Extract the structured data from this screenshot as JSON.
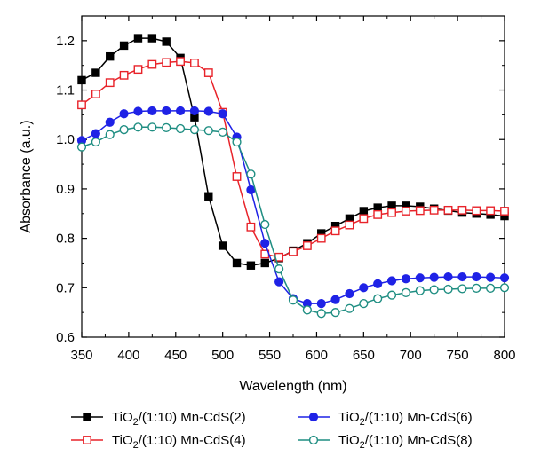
{
  "chart_data": {
    "type": "line",
    "title": "",
    "xlabel": "Wavelength (nm)",
    "ylabel": "Absorbance (a.u.)",
    "xlim": [
      350,
      800
    ],
    "ylim": [
      0.6,
      1.25
    ],
    "xticks": [
      350,
      400,
      450,
      500,
      550,
      600,
      650,
      700,
      750,
      800
    ],
    "yticks": [
      0.6,
      0.7,
      0.8,
      0.9,
      1.0,
      1.1,
      1.2
    ],
    "ytick_labels": [
      "0.6",
      "0.7",
      "0.8",
      "0.9",
      "1.0",
      "1.1",
      "1.2"
    ],
    "grid": false,
    "legend_position": "bottom, below plot",
    "series": [
      {
        "name": "TiO2/(1:10) Mn-CdS(2)",
        "legend_main": "TiO",
        "legend_sub": "2",
        "legend_rest": "/(1:10) Mn-CdS(2)",
        "color": "#000000",
        "marker": "square-filled",
        "x": [
          350,
          365,
          380,
          395,
          410,
          425,
          440,
          455,
          470,
          485,
          500,
          515,
          530,
          545,
          560,
          575,
          590,
          605,
          620,
          635,
          650,
          665,
          680,
          695,
          710,
          725,
          740,
          755,
          770,
          785,
          800
        ],
        "y": [
          1.12,
          1.135,
          1.168,
          1.19,
          1.205,
          1.205,
          1.198,
          1.165,
          1.045,
          0.885,
          0.785,
          0.75,
          0.745,
          0.75,
          0.76,
          0.775,
          0.79,
          0.81,
          0.825,
          0.84,
          0.855,
          0.862,
          0.866,
          0.866,
          0.864,
          0.86,
          0.856,
          0.852,
          0.85,
          0.848,
          0.845
        ]
      },
      {
        "name": "TiO2/(1:10) Mn-CdS(4)",
        "legend_main": "TiO",
        "legend_sub": "2",
        "legend_rest": "/(1:10) Mn-CdS(4)",
        "color": "#e8232a",
        "marker": "square-open",
        "x": [
          350,
          365,
          380,
          395,
          410,
          425,
          440,
          455,
          470,
          485,
          500,
          515,
          530,
          545,
          560,
          575,
          590,
          605,
          620,
          635,
          650,
          665,
          680,
          695,
          710,
          725,
          740,
          755,
          770,
          785,
          800
        ],
        "y": [
          1.07,
          1.092,
          1.115,
          1.13,
          1.142,
          1.152,
          1.156,
          1.158,
          1.155,
          1.135,
          1.055,
          0.925,
          0.823,
          0.768,
          0.762,
          0.773,
          0.785,
          0.8,
          0.815,
          0.827,
          0.84,
          0.848,
          0.852,
          0.855,
          0.856,
          0.857,
          0.857,
          0.857,
          0.856,
          0.856,
          0.855
        ]
      },
      {
        "name": "TiO2/(1:10) Mn-CdS(6)",
        "legend_main": "TiO",
        "legend_sub": "2",
        "legend_rest": "/(1:10) Mn-CdS(6)",
        "color": "#1f22e6",
        "marker": "circle-filled",
        "x": [
          350,
          365,
          380,
          395,
          410,
          425,
          440,
          455,
          470,
          485,
          500,
          515,
          530,
          545,
          560,
          575,
          590,
          605,
          620,
          635,
          650,
          665,
          680,
          695,
          710,
          725,
          740,
          755,
          770,
          785,
          800
        ],
        "y": [
          0.998,
          1.012,
          1.035,
          1.052,
          1.057,
          1.058,
          1.058,
          1.058,
          1.058,
          1.057,
          1.052,
          1.005,
          0.898,
          0.79,
          0.712,
          0.678,
          0.668,
          0.668,
          0.676,
          0.688,
          0.7,
          0.708,
          0.714,
          0.718,
          0.72,
          0.721,
          0.722,
          0.722,
          0.722,
          0.721,
          0.72
        ]
      },
      {
        "name": "TiO2/(1:10) Mn-CdS(8)",
        "legend_main": "TiO",
        "legend_sub": "2",
        "legend_rest": "/(1:10) Mn-CdS(8)",
        "color": "#1f8e82",
        "marker": "circle-open",
        "x": [
          350,
          365,
          380,
          395,
          410,
          425,
          440,
          455,
          470,
          485,
          500,
          515,
          530,
          545,
          560,
          575,
          590,
          605,
          620,
          635,
          650,
          665,
          680,
          695,
          710,
          725,
          740,
          755,
          770,
          785,
          800
        ],
        "y": [
          0.985,
          0.995,
          1.01,
          1.02,
          1.025,
          1.025,
          1.024,
          1.022,
          1.02,
          1.018,
          1.015,
          0.995,
          0.93,
          0.828,
          0.738,
          0.675,
          0.655,
          0.648,
          0.65,
          0.658,
          0.668,
          0.678,
          0.685,
          0.69,
          0.694,
          0.696,
          0.697,
          0.698,
          0.699,
          0.699,
          0.7
        ]
      }
    ]
  }
}
